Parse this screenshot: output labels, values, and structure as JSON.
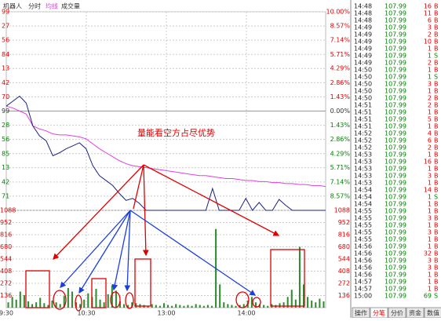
{
  "toolbar": [
    "机器人",
    "分时",
    "均线",
    "成交量"
  ],
  "chart": {
    "annotation": "量能看空方占尽优势",
    "price_axis": {
      "range": [
        -10,
        10
      ],
      "ticks": [
        {
          "value": 10,
          "label": "10.00%"
        },
        {
          "value": 8.57,
          "label": "8.57%"
        },
        {
          "value": 7.14,
          "label": "7.14%"
        },
        {
          "value": 5.71,
          "label": "5.71%"
        },
        {
          "value": 4.29,
          "label": "4.29%"
        },
        {
          "value": 2.86,
          "label": "2.86%"
        },
        {
          "value": 1.43,
          "label": "1.43%"
        },
        {
          "value": 0,
          "label": "0.00%"
        },
        {
          "value": -1.43,
          "label": "1.43%"
        },
        {
          "value": -2.86,
          "label": "2.86%"
        },
        {
          "value": -4.29,
          "label": "4.29%"
        },
        {
          "value": -5.71,
          "label": "5.71%"
        },
        {
          "value": -7.14,
          "label": "7.14%"
        },
        {
          "value": -8.57,
          "label": "8.57%"
        }
      ],
      "left_labels": [
        "99",
        "27",
        "56",
        "84",
        "13",
        "42",
        "70",
        "99",
        "28",
        "56",
        "85",
        "13",
        "42",
        "71"
      ]
    },
    "volume_axis": {
      "range": [
        0,
        1088
      ],
      "ticks": [
        136,
        272,
        408,
        544,
        680,
        816,
        952,
        1088
      ]
    },
    "time_labels": [
      "9:30",
      "10:30",
      "13:00",
      "14:00"
    ],
    "price_color": "#1a237e",
    "avg_color": "#e040e0",
    "volume_color": "#2e8b2e",
    "price": [
      0.5,
      1.0,
      1.5,
      0.8,
      -1.5,
      -2.5,
      -3.0,
      -4.5,
      -4.2,
      -3.8,
      -3.5,
      -3.2,
      -3.8,
      -5.5,
      -6.5,
      -7.0,
      -7.5,
      -8.3,
      -9.0,
      -8.8,
      -9.3,
      -10,
      -10,
      -10,
      -10,
      -10,
      -10,
      -10,
      -10,
      -10,
      -10,
      -7.8,
      -10,
      -10,
      -10,
      -10,
      -8.8,
      -10,
      -9.2,
      -10,
      -10,
      -8.9,
      -9.5,
      -10,
      -10,
      -10,
      -10,
      -10,
      -10
    ],
    "average": [
      0.5,
      0.3,
      0.0,
      -0.3,
      -1.5,
      -1.8,
      -2.0,
      -2.3,
      -2.4,
      -2.4,
      -2.5,
      -2.6,
      -2.8,
      -3.3,
      -3.8,
      -4.2,
      -4.6,
      -5.0,
      -5.3,
      -5.5,
      -5.6,
      -5.7,
      -5.8,
      -5.9,
      -6.0,
      -6.1,
      -6.2,
      -6.3,
      -6.4,
      -6.5,
      -6.5,
      -6.6,
      -6.7,
      -6.8,
      -6.8,
      -6.9,
      -7.0,
      -7.0,
      -7.1,
      -7.1,
      -7.2,
      -7.2,
      -7.3,
      -7.3,
      -7.4,
      -7.4,
      -7.5,
      -7.5,
      -7.6
    ],
    "volume": [
      60,
      120,
      90,
      180,
      140,
      70,
      40,
      60,
      110,
      50,
      30,
      80,
      60,
      40,
      130,
      220,
      180,
      60,
      40,
      90,
      160,
      120,
      210,
      90,
      60,
      150,
      250,
      190,
      70,
      40,
      30,
      60,
      50,
      40,
      30,
      20,
      40,
      30,
      20,
      50,
      30,
      20,
      40,
      30,
      20,
      30,
      20,
      40,
      30,
      20,
      30,
      20,
      880,
      260,
      60,
      40,
      30,
      20,
      30,
      40,
      80,
      120,
      60,
      40,
      30,
      20,
      40,
      30,
      50,
      60,
      120,
      200,
      90,
      680,
      260,
      120,
      80,
      60,
      100,
      70
    ]
  },
  "trades": {
    "price_color": "#008000",
    "side_colors": {
      "B": "#e00000",
      "S": "#008000"
    },
    "rows": [
      [
        "14:48",
        "107.99",
        "16",
        "B"
      ],
      [
        "14:48",
        "107.99",
        "11",
        "B"
      ],
      [
        "14:48",
        "107.99",
        "6",
        "B"
      ],
      [
        "14:49",
        "107.99",
        "3",
        "B"
      ],
      [
        "14:49",
        "107.99",
        "2",
        "B"
      ],
      [
        "14:49",
        "107.99",
        "10",
        "B"
      ],
      [
        "14:49",
        "107.99",
        "1",
        "B"
      ],
      [
        "14:49",
        "107.99",
        "1",
        "S"
      ],
      [
        "14:49",
        "107.99",
        "2",
        "B"
      ],
      [
        "14:50",
        "107.99",
        "1",
        "B"
      ],
      [
        "14:50",
        "107.99",
        "1",
        "S"
      ],
      [
        "14:50",
        "107.99",
        "3",
        "B"
      ],
      [
        "14:50",
        "107.99",
        "1",
        "B"
      ],
      [
        "14:50",
        "107.99",
        "2",
        "B"
      ],
      [
        "14:51",
        "107.99",
        "2",
        "B"
      ],
      [
        "14:51",
        "107.99",
        "1",
        "B"
      ],
      [
        "14:51",
        "107.99",
        "5",
        "B"
      ],
      [
        "14:51",
        "107.99",
        "1",
        "B"
      ],
      [
        "14:52",
        "107.99",
        "4",
        "B"
      ],
      [
        "14:52",
        "107.99",
        "6",
        "B"
      ],
      [
        "14:52",
        "107.99",
        "2",
        "B"
      ],
      [
        "14:53",
        "107.99",
        "1",
        "B"
      ],
      [
        "14:53",
        "107.99",
        "16",
        "B"
      ],
      [
        "14:53",
        "107.99",
        "1",
        "B"
      ],
      [
        "14:53",
        "107.99",
        "3",
        "B"
      ],
      [
        "14:53",
        "107.99",
        "1",
        "B"
      ],
      [
        "14:54",
        "107.99",
        "14",
        "B"
      ],
      [
        "14:54",
        "107.99",
        "1",
        "S"
      ],
      [
        "14:54",
        "107.99",
        "1",
        "B"
      ],
      [
        "14:55",
        "107.99",
        "1",
        "B"
      ],
      [
        "14:55",
        "107.99",
        "3",
        "B"
      ],
      [
        "14:55",
        "107.99",
        "1",
        "B"
      ],
      [
        "14:55",
        "107.99",
        "3",
        "B"
      ],
      [
        "14:55",
        "107.99",
        "1",
        "B"
      ],
      [
        "14:56",
        "107.99",
        "1",
        "B"
      ],
      [
        "14:56",
        "107.99",
        "32",
        "B"
      ],
      [
        "14:56",
        "107.99",
        "3",
        "B"
      ],
      [
        "14:56",
        "107.99",
        "3",
        "B"
      ],
      [
        "14:56",
        "107.99",
        "1",
        "B"
      ],
      [
        "14:57",
        "107.99",
        "1",
        "B"
      ],
      [
        "14:57",
        "107.99",
        "1",
        "B"
      ],
      [
        "15:00",
        "107.99",
        "69",
        "S"
      ]
    ]
  },
  "tabs": [
    "操作",
    "分笔",
    "分价",
    "资金",
    "数值"
  ]
}
